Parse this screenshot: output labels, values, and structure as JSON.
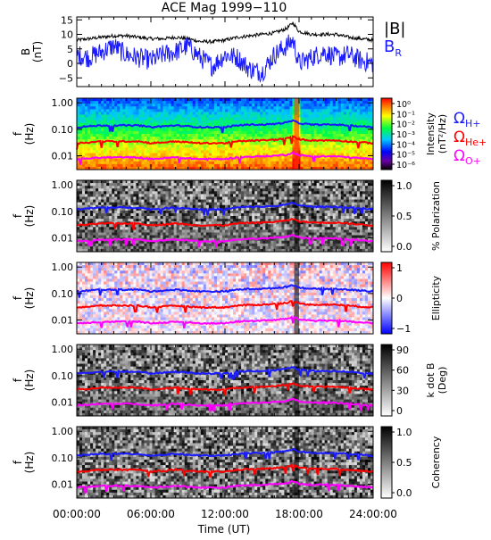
{
  "title": "ACE Mag 1999−110",
  "xaxis": {
    "label": "Time (UT)",
    "range": [
      0,
      24
    ],
    "ticks": [
      0,
      6,
      12,
      18,
      24
    ],
    "tick_labels": [
      "00:00:00",
      "06:00:00",
      "12:00:00",
      "18:00:00",
      "24:00:00"
    ]
  },
  "colors": {
    "B_total": "#000000",
    "B_R": "#1a1aff",
    "H_plus": "#1a1aff",
    "He_plus": "#ff0000",
    "O_plus": "#ff00ff"
  },
  "chart_data": [
    {
      "type": "line",
      "panel": "field",
      "ylabel": "B\n(nT)",
      "ylim": [
        -8,
        16
      ],
      "yticks": [
        -5,
        0,
        5,
        10,
        15
      ],
      "yticklabels": [
        "−5",
        "0",
        "5",
        "10",
        "15"
      ],
      "series": [
        {
          "name": "|B|",
          "x": [
            0,
            1,
            2,
            3,
            4,
            5,
            6,
            7,
            8,
            9,
            10,
            11,
            12,
            13,
            14,
            15,
            16,
            17,
            17.5,
            18,
            19,
            20,
            21,
            22,
            23,
            24
          ],
          "y": [
            8,
            8.5,
            9,
            9.5,
            9.5,
            9,
            8.5,
            8.5,
            9,
            8.5,
            7.5,
            7.5,
            8,
            9,
            9.5,
            10,
            10.5,
            12,
            14,
            11,
            10,
            10,
            10,
            9,
            8.5,
            8
          ]
        },
        {
          "name": "B_R",
          "x": [
            0,
            1,
            2,
            3,
            4,
            5,
            6,
            7,
            8,
            9,
            10,
            11,
            12,
            13,
            14,
            15,
            16,
            17,
            17.5,
            18,
            19,
            20,
            21,
            22,
            23,
            24
          ],
          "y": [
            3,
            2,
            4,
            6,
            3,
            2,
            1,
            3,
            4,
            6,
            2,
            -1,
            3,
            2,
            -2,
            -3,
            3,
            6,
            8,
            0,
            2,
            4,
            2,
            3,
            1,
            0
          ]
        }
      ]
    },
    {
      "type": "heatmap",
      "panel": "intensity",
      "ylabel": "f\n(Hz)",
      "colorbar_label": "Intensity\n(nT²/Hz)",
      "colorbar_ticks": [
        "10⁰",
        "10⁻¹",
        "10⁻²",
        "10⁻³",
        "10⁻⁴",
        "10⁻⁵",
        "10⁻⁶"
      ]
    },
    {
      "type": "heatmap",
      "panel": "polarization",
      "ylabel": "f\n(Hz)",
      "colorbar_label": "% Polarization",
      "colorbar_ticks": [
        "1.0",
        "0.5",
        "0.0"
      ]
    },
    {
      "type": "heatmap",
      "panel": "ellipticity",
      "ylabel": "f\n(Hz)",
      "colorbar_label": "Ellipticity",
      "colorbar_ticks": [
        "1",
        "0",
        "−1"
      ]
    },
    {
      "type": "heatmap",
      "panel": "kdotb",
      "ylabel": "f\n(Hz)",
      "colorbar_label": "k dot B\n(Deg)",
      "colorbar_ticks": [
        "90",
        "60",
        "30",
        "0"
      ]
    },
    {
      "type": "heatmap",
      "panel": "coherency",
      "ylabel": "f\n(Hz)",
      "colorbar_label": "Coherency",
      "colorbar_ticks": [
        "1.0",
        "0.5",
        "0.0"
      ]
    }
  ],
  "frequency_axis": {
    "scale": "log",
    "range": [
      0.003,
      1.5
    ],
    "ticks": [
      0.01,
      0.1,
      1.0
    ],
    "tick_labels": [
      "0.01",
      "0.10",
      "1.00"
    ]
  },
  "gyrofrequency_lines": {
    "x": [
      0,
      1,
      2,
      3,
      4,
      5,
      6,
      7,
      8,
      9,
      10,
      11,
      12,
      13,
      14,
      15,
      16,
      17,
      17.5,
      18,
      19,
      20,
      21,
      22,
      23,
      24
    ],
    "H_plus": [
      0.12,
      0.13,
      0.14,
      0.14,
      0.14,
      0.14,
      0.12,
      0.13,
      0.14,
      0.13,
      0.12,
      0.12,
      0.12,
      0.14,
      0.15,
      0.15,
      0.16,
      0.18,
      0.21,
      0.17,
      0.15,
      0.15,
      0.15,
      0.14,
      0.13,
      0.12
    ],
    "He_plus": [
      0.03,
      0.032,
      0.035,
      0.035,
      0.035,
      0.035,
      0.03,
      0.032,
      0.035,
      0.032,
      0.03,
      0.03,
      0.03,
      0.035,
      0.037,
      0.038,
      0.04,
      0.045,
      0.052,
      0.042,
      0.038,
      0.038,
      0.038,
      0.035,
      0.032,
      0.03
    ],
    "O_plus": [
      0.0075,
      0.008,
      0.0085,
      0.0087,
      0.0087,
      0.0085,
      0.0075,
      0.008,
      0.0087,
      0.008,
      0.0075,
      0.0075,
      0.0075,
      0.0087,
      0.0092,
      0.0095,
      0.01,
      0.011,
      0.013,
      0.0105,
      0.0095,
      0.0095,
      0.0095,
      0.0087,
      0.008,
      0.0075
    ]
  },
  "legend_field": {
    "b_total": "|B|",
    "b_r": "B",
    "b_r_sub": "R"
  },
  "legend_ions": [
    {
      "symbol": "Ω",
      "sub": "H+",
      "color": "#1a1aff"
    },
    {
      "symbol": "Ω",
      "sub": "He+",
      "color": "#ff0000"
    },
    {
      "symbol": "Ω",
      "sub": "O+",
      "color": "#ff00ff"
    }
  ]
}
